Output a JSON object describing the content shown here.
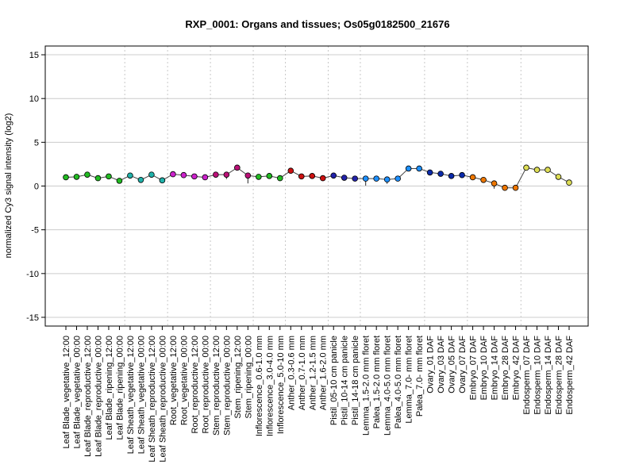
{
  "chart_data": {
    "type": "line",
    "title": "RXP_0001: Organs and tissues; Os05g0182500_21676",
    "xlabel": "",
    "ylabel": "normalized Cy3 signal intensity (log2)",
    "ylim": [
      -16,
      16
    ],
    "yticks": [
      -15,
      -10,
      -5,
      0,
      5,
      10,
      15
    ],
    "grid": true,
    "categories": [
      "Leaf Blade_vegetative_12:00",
      "Leaf Blade_vegetative_00:00",
      "Leaf Blade_reproductive_12:00",
      "Leaf Blade_reproductive_00:00",
      "Leaf Blade_ripening_12:00",
      "Leaf Blade_ripening_00:00",
      "Leaf Sheath_vegetative_12:00",
      "Leaf Sheath_vegetative_00:00",
      "Leaf Sheath_reproductive_12:00",
      "Leaf Sheath_reproductive_00:00",
      "Root_vegetative_12:00",
      "Root_vegetative_00:00",
      "Root_reproductive_12:00",
      "Root_reproductive_00:00",
      "Stem_reproductive_12:00",
      "Stem_reproductive_00:00",
      "Stem_ripening_12:00",
      "Stem_ripening_00:00",
      "Inflorescence_0.6-1.0 mm",
      "Inflorescence_3.0-4.0 mm",
      "Inflorescence_5.0-10 mm",
      "Anther_0.3-0.6 mm",
      "Anther_0.7-1.0 mm",
      "Anther_1.2-1.5 mm",
      "Anther_1.6-2.0 mm",
      "Pistil_05-10 cm panicle",
      "Pistil_10-14 cm panicle",
      "Pistil_14-18 cm panicle",
      "Lemma_1.5-2.0 mm floret",
      "Palea_1.5-2.0 mm floret",
      "Lemma_4.0-5.0 mm floret",
      "Palea_4.0-5.0 mm floret",
      "Lemma_7.0- mm floret",
      "Palea_7.0- mm floret",
      "Ovary_01 DAF",
      "Ovary_03 DAF",
      "Ovary_05 DAF",
      "Ovary_07 DAF",
      "Embryo_07 DAF",
      "Embryo_10 DAF",
      "Embryo_14 DAF",
      "Embryo_28 DAF",
      "Embryo_42 DAF",
      "Endosperm_07 DAF",
      "Endosperm_10 DAF",
      "Endosperm_14 DAF",
      "Endosperm_28 DAF",
      "Endosperm_42 DAF"
    ],
    "values": [
      1.0,
      1.05,
      1.3,
      0.9,
      1.1,
      0.6,
      1.2,
      0.7,
      1.3,
      0.65,
      1.35,
      1.25,
      1.1,
      1.0,
      1.3,
      1.3,
      2.1,
      1.2,
      1.05,
      1.15,
      0.9,
      1.75,
      1.1,
      1.15,
      0.9,
      1.2,
      0.95,
      0.85,
      0.85,
      0.85,
      0.75,
      0.85,
      2.0,
      2.0,
      1.55,
      1.4,
      1.15,
      1.25,
      1.0,
      0.7,
      0.3,
      -0.2,
      -0.2,
      2.1,
      1.85,
      1.85,
      1.05,
      0.4
    ],
    "errors": [
      0.1,
      0.1,
      0.1,
      0.1,
      0.1,
      0.1,
      0.1,
      0.1,
      0.1,
      0.1,
      0.1,
      0.1,
      0.1,
      0.1,
      0.3,
      0.5,
      0.2,
      0.9,
      0.1,
      0.1,
      0.1,
      0.1,
      0.1,
      0.1,
      0.1,
      0.1,
      0.1,
      0.1,
      0.8,
      0.1,
      0.5,
      0.1,
      0.1,
      0.2,
      0.1,
      0.1,
      0.1,
      0.1,
      0.1,
      0.1,
      0.6,
      0.1,
      0.1,
      0.1,
      0.1,
      0.1,
      0.1,
      0.1
    ],
    "colors": [
      "#22bb22",
      "#22bb22",
      "#22bb22",
      "#22bb22",
      "#22bb22",
      "#22bb22",
      "#20b2aa",
      "#20b2aa",
      "#20b2aa",
      "#20b2aa",
      "#cc22cc",
      "#cc22cc",
      "#cc22cc",
      "#cc22cc",
      "#bb1177",
      "#bb1177",
      "#bb1177",
      "#bb1177",
      "#22bb22",
      "#22bb22",
      "#22bb22",
      "#cc1111",
      "#cc1111",
      "#cc1111",
      "#cc1111",
      "#2222aa",
      "#2222aa",
      "#2222aa",
      "#1e90ff",
      "#1e90ff",
      "#1e90ff",
      "#1e90ff",
      "#1e90ff",
      "#1e90ff",
      "#0a2aaa",
      "#0a2aaa",
      "#0a2aaa",
      "#0a2aaa",
      "#ee7700",
      "#ee7700",
      "#ee7700",
      "#ee7700",
      "#ee7700",
      "#dddd55",
      "#dddd55",
      "#dddd55",
      "#dddd55",
      "#dddd55"
    ],
    "group_boundaries_after": [
      5,
      9,
      13,
      17,
      20,
      24,
      27,
      33,
      37,
      42
    ]
  }
}
